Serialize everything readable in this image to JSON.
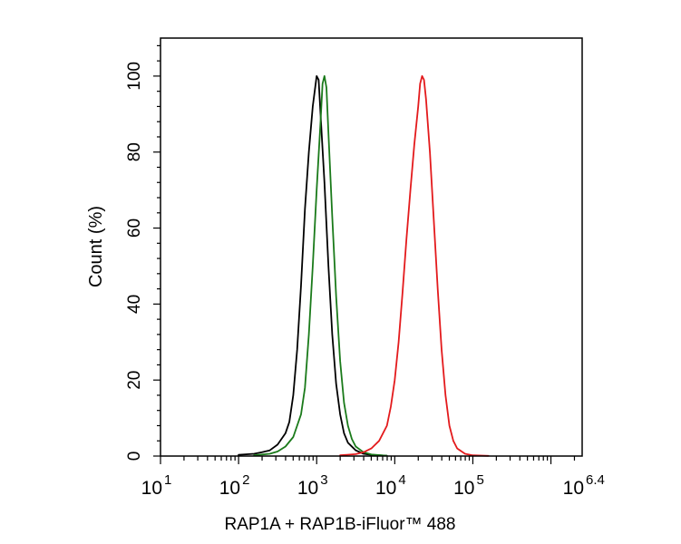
{
  "chart_data": {
    "type": "line",
    "title": "",
    "xlabel": "RAP1A + RAP1B-iFluor™ 488",
    "ylabel": "Count  (%)",
    "x_scale": "log",
    "xlim": [
      10,
      2511886
    ],
    "ylim": [
      0,
      110
    ],
    "x_ticks": [
      {
        "base": "10",
        "exp": "1",
        "value": 10
      },
      {
        "base": "10",
        "exp": "2",
        "value": 100
      },
      {
        "base": "10",
        "exp": "3",
        "value": 1000
      },
      {
        "base": "10",
        "exp": "4",
        "value": 10000
      },
      {
        "base": "10",
        "exp": "5",
        "value": 100000
      },
      {
        "base": "10",
        "exp": "6.4",
        "value": 2511886
      }
    ],
    "y_ticks": [
      {
        "label": "0",
        "value": 0
      },
      {
        "label": "20",
        "value": 20
      },
      {
        "label": "40",
        "value": 40
      },
      {
        "label": "60",
        "value": 60
      },
      {
        "label": "80",
        "value": 80
      },
      {
        "label": "100",
        "value": 100
      }
    ],
    "grid": false,
    "legend": "none",
    "series": [
      {
        "color": "#000000",
        "points": [
          [
            100,
            0.3
          ],
          [
            158,
            0.6
          ],
          [
            200,
            1.0
          ],
          [
            251,
            1.5
          ],
          [
            316,
            3
          ],
          [
            398,
            6
          ],
          [
            447,
            9
          ],
          [
            501,
            16
          ],
          [
            562,
            28
          ],
          [
            631,
            45
          ],
          [
            708,
            65
          ],
          [
            794,
            80
          ],
          [
            891,
            92
          ],
          [
            1000,
            100
          ],
          [
            1059,
            99
          ],
          [
            1122,
            90
          ],
          [
            1259,
            72
          ],
          [
            1413,
            50
          ],
          [
            1585,
            32
          ],
          [
            1778,
            19
          ],
          [
            1995,
            11
          ],
          [
            2239,
            6
          ],
          [
            2512,
            3.5
          ],
          [
            3162,
            1.5
          ],
          [
            3981,
            0.6
          ],
          [
            5012,
            0.3
          ],
          [
            7943,
            0.1
          ]
        ]
      },
      {
        "color": "#1a7a1a",
        "points": [
          [
            158,
            0.2
          ],
          [
            251,
            0.6
          ],
          [
            316,
            1.2
          ],
          [
            398,
            2.5
          ],
          [
            501,
            5
          ],
          [
            631,
            11
          ],
          [
            708,
            18
          ],
          [
            794,
            32
          ],
          [
            891,
            50
          ],
          [
            1000,
            70
          ],
          [
            1122,
            88
          ],
          [
            1189,
            98
          ],
          [
            1259,
            100
          ],
          [
            1334,
            97
          ],
          [
            1413,
            85
          ],
          [
            1585,
            63
          ],
          [
            1778,
            42
          ],
          [
            1995,
            25
          ],
          [
            2239,
            14
          ],
          [
            2512,
            8
          ],
          [
            2818,
            4.5
          ],
          [
            3162,
            2.5
          ],
          [
            3981,
            1.0
          ],
          [
            5012,
            0.4
          ],
          [
            7943,
            0.1
          ]
        ]
      },
      {
        "color": "#e31a1c",
        "points": [
          [
            1995,
            0.2
          ],
          [
            3162,
            0.5
          ],
          [
            3981,
            1.0
          ],
          [
            5012,
            2
          ],
          [
            6310,
            4
          ],
          [
            7943,
            8
          ],
          [
            8913,
            13
          ],
          [
            10000,
            20
          ],
          [
            11220,
            30
          ],
          [
            12589,
            43
          ],
          [
            14125,
            57
          ],
          [
            15849,
            70
          ],
          [
            17783,
            82
          ],
          [
            19953,
            92
          ],
          [
            21135,
            98
          ],
          [
            22387,
            100
          ],
          [
            23714,
            99
          ],
          [
            25119,
            94
          ],
          [
            28184,
            80
          ],
          [
            31623,
            62
          ],
          [
            35481,
            44
          ],
          [
            39811,
            28
          ],
          [
            44668,
            16
          ],
          [
            50119,
            8
          ],
          [
            56234,
            4
          ],
          [
            63096,
            2
          ],
          [
            79433,
            0.6
          ],
          [
            100000,
            0.2
          ],
          [
            158489,
            0.05
          ]
        ]
      }
    ]
  }
}
